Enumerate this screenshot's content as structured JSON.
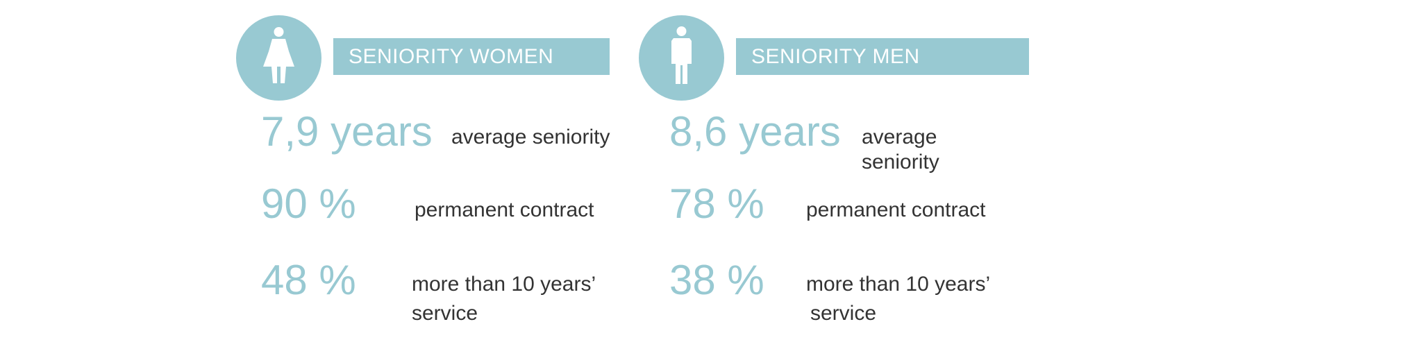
{
  "colors": {
    "accent": "#98c9d2",
    "text": "#333333",
    "title_text": "#ffffff"
  },
  "women": {
    "icon": "woman-icon",
    "title": "SENIORITY WOMEN",
    "stats": [
      {
        "value": "7,9 years",
        "label": "average seniority"
      },
      {
        "value": "90 %",
        "label": "permanent contract"
      },
      {
        "value": "48 %",
        "label_line1": "more than 10 years’",
        "label_line2": "service"
      }
    ]
  },
  "men": {
    "icon": "man-icon",
    "title": "SENIORITY MEN",
    "stats": [
      {
        "value": "8,6 years",
        "label": "average seniority"
      },
      {
        "value": "78 %",
        "label": "permanent contract"
      },
      {
        "value": "38 %",
        "label_line1": "more than 10 years’",
        "label_line2": "service"
      }
    ]
  }
}
